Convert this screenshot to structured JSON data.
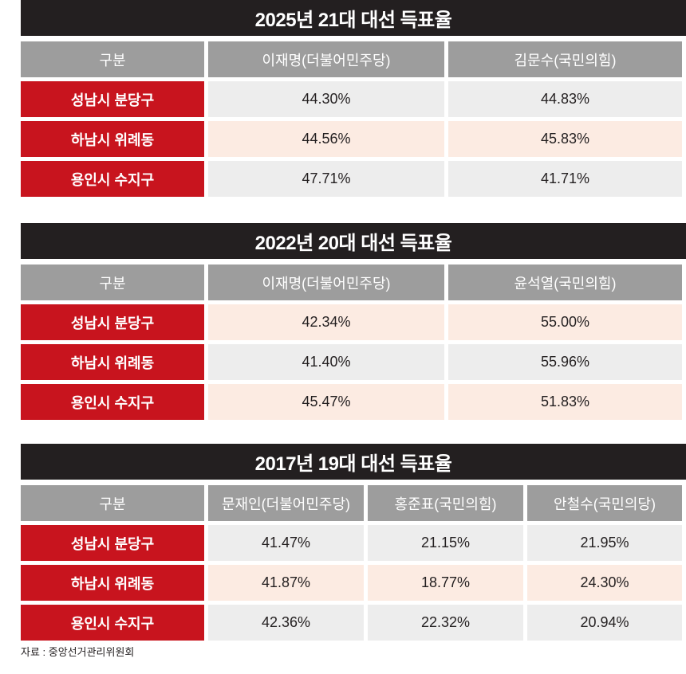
{
  "colors": {
    "title_bg": "#231f20",
    "header_bg": "#9d9d9d",
    "region_bg": "#c8141e",
    "row_gray": "#ededed",
    "row_cream": "#fcebe2"
  },
  "chart_data": [
    {
      "type": "table",
      "title": "2025년 21대 대선 득표율",
      "columns": [
        "구분",
        "이재명(더불어민주당)",
        "김문수(국민의힘)"
      ],
      "rows": [
        {
          "region": "성남시 분당구",
          "values": [
            "44.30%",
            "44.83%"
          ],
          "shade": "gray"
        },
        {
          "region": "하남시 위례동",
          "values": [
            "44.56%",
            "45.83%"
          ],
          "shade": "cream"
        },
        {
          "region": "용인시 수지구",
          "values": [
            "47.71%",
            "41.71%"
          ],
          "shade": "gray"
        }
      ]
    },
    {
      "type": "table",
      "title": "2022년 20대 대선 득표율",
      "columns": [
        "구분",
        "이재명(더불어민주당)",
        "윤석열(국민의힘)"
      ],
      "rows": [
        {
          "region": "성남시 분당구",
          "values": [
            "42.34%",
            "55.00%"
          ],
          "shade": "cream"
        },
        {
          "region": "하남시 위례동",
          "values": [
            "41.40%",
            "55.96%"
          ],
          "shade": "gray"
        },
        {
          "region": "용인시 수지구",
          "values": [
            "45.47%",
            "51.83%"
          ],
          "shade": "cream"
        }
      ]
    },
    {
      "type": "table",
      "title": "2017년 19대 대선 득표율",
      "columns": [
        "구분",
        "문재인(더불어민주당)",
        "홍준표(국민의힘)",
        "안철수(국민의당)"
      ],
      "rows": [
        {
          "region": "성남시 분당구",
          "values": [
            "41.47%",
            "21.15%",
            "21.95%"
          ],
          "shade": "gray"
        },
        {
          "region": "하남시 위례동",
          "values": [
            "41.87%",
            "18.77%",
            "24.30%"
          ],
          "shade": "cream"
        },
        {
          "region": "용인시 수지구",
          "values": [
            "42.36%",
            "22.32%",
            "20.94%"
          ],
          "shade": "gray"
        }
      ]
    }
  ],
  "source": "자료 : 중앙선거관리위원회"
}
